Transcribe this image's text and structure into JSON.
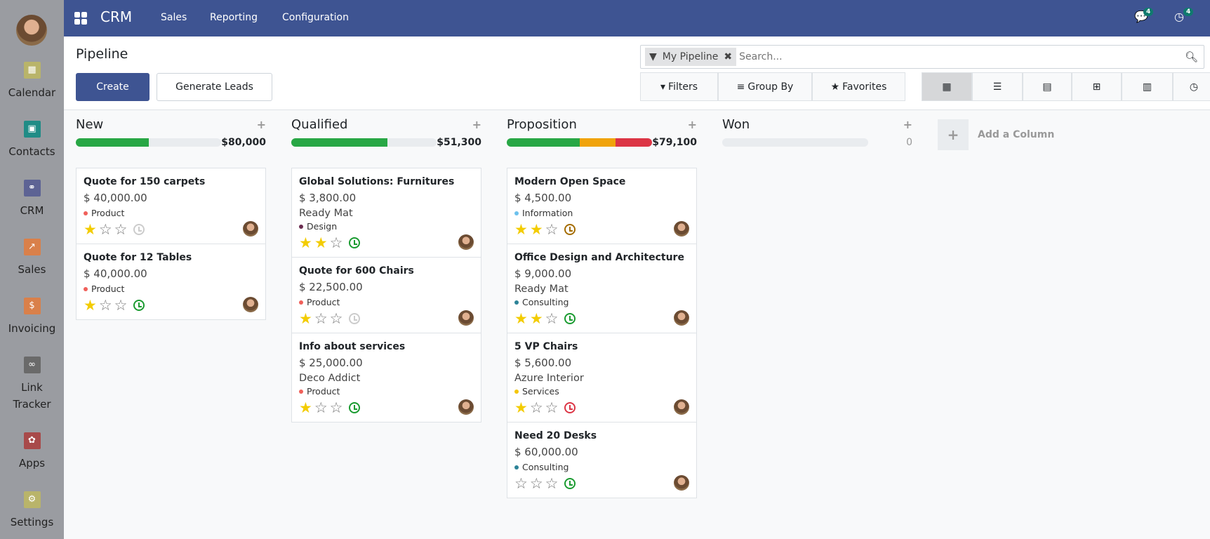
{
  "sidebar": {
    "items": [
      {
        "label": "Calendar",
        "icon": "calendar-icon",
        "color": "#b9b46a",
        "glyph": "▦"
      },
      {
        "label": "Contacts",
        "icon": "contacts-icon",
        "color": "#208c86",
        "glyph": "▣"
      },
      {
        "label": "CRM",
        "icon": "handshake-icon",
        "color": "#5d6394",
        "glyph": "⚭"
      },
      {
        "label": "Sales",
        "icon": "chart-up-icon",
        "color": "#d9804a",
        "glyph": "↗"
      },
      {
        "label": "Invoicing",
        "icon": "invoice-icon",
        "color": "#d9804a",
        "glyph": "$"
      },
      {
        "label": "Link Tracker",
        "icon": "link-icon",
        "color": "#6a6a6a",
        "glyph": "∞"
      },
      {
        "label": "Apps",
        "icon": "apps-icon",
        "color": "#a84a4a",
        "glyph": "✿"
      },
      {
        "label": "Settings",
        "icon": "gear-icon",
        "color": "#b9b46a",
        "glyph": "⚙"
      }
    ]
  },
  "topbar": {
    "brand": "CRM",
    "menus": [
      "Sales",
      "Reporting",
      "Configuration"
    ],
    "messages_count": "4",
    "activities_count": "4"
  },
  "control": {
    "title": "Pipeline",
    "create": "Create",
    "generate": "Generate Leads",
    "facet": "My Pipeline",
    "search_placeholder": "Search...",
    "filters": "Filters",
    "group_by": "Group By",
    "favorites": "Favorites",
    "views": [
      "kanban",
      "list",
      "calendar",
      "pivot",
      "graph",
      "activity"
    ],
    "active_view": "kanban"
  },
  "colors": {
    "green": "#28a745",
    "orange": "#f0a30a",
    "red": "#dc3545",
    "accent": "#3e5492"
  },
  "columns": [
    {
      "title": "New",
      "amount": "$80,000",
      "progress": {
        "green": 50,
        "orange": 0,
        "red": 0
      },
      "cards": [
        {
          "title": "Quote for 150 carpets",
          "amount": "$ 40,000.00",
          "company": "",
          "tag": "Product",
          "tag_color": "#f0605a",
          "stars": 1,
          "activity": "none"
        },
        {
          "title": "Quote for 12 Tables",
          "amount": "$ 40,000.00",
          "company": "",
          "tag": "Product",
          "tag_color": "#f0605a",
          "stars": 1,
          "activity": "planned"
        }
      ]
    },
    {
      "title": "Qualified",
      "amount": "$51,300",
      "progress": {
        "green": 66,
        "orange": 0,
        "red": 0
      },
      "cards": [
        {
          "title": "Global Solutions: Furnitures",
          "amount": "$ 3,800.00",
          "company": "Ready Mat",
          "tag": "Design",
          "tag_color": "#6a2c50",
          "stars": 2,
          "activity": "planned"
        },
        {
          "title": "Quote for 600 Chairs",
          "amount": "$ 22,500.00",
          "company": "",
          "tag": "Product",
          "tag_color": "#f0605a",
          "stars": 1,
          "activity": "none"
        },
        {
          "title": "Info about services",
          "amount": "$ 25,000.00",
          "company": "Deco Addict",
          "tag": "Product",
          "tag_color": "#f0605a",
          "stars": 1,
          "activity": "planned"
        }
      ]
    },
    {
      "title": "Proposition",
      "amount": "$79,100",
      "progress": {
        "green": 50,
        "orange": 25,
        "red": 25
      },
      "cards": [
        {
          "title": "Modern Open Space",
          "amount": "$ 4,500.00",
          "company": "",
          "tag": "Information",
          "tag_color": "#6cc1ed",
          "stars": 2,
          "activity": "today"
        },
        {
          "title": "Office Design and Architecture",
          "amount": "$ 9,000.00",
          "company": "Ready Mat",
          "tag": "Consulting",
          "tag_color": "#2c8397",
          "stars": 2,
          "activity": "planned"
        },
        {
          "title": "5 VP Chairs",
          "amount": "$ 5,600.00",
          "company": "Azure Interior",
          "tag": "Services",
          "tag_color": "#f4c609",
          "stars": 1,
          "activity": "overdue"
        },
        {
          "title": "Need 20 Desks",
          "amount": "$ 60,000.00",
          "company": "",
          "tag": "Consulting",
          "tag_color": "#2c8397",
          "stars": 0,
          "activity": "planned"
        }
      ]
    },
    {
      "title": "Won",
      "amount": "0",
      "progress": {
        "green": 0,
        "orange": 0,
        "red": 0
      },
      "cards": []
    }
  ],
  "add_column": "Add a Column"
}
